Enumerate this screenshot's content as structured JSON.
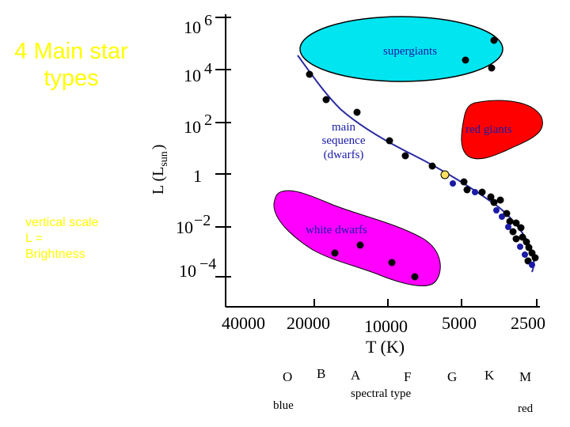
{
  "title": "4 Main star types",
  "vertical_note": {
    "line1": "vertical scale",
    "line2": "L =",
    "line3": "Brightness"
  },
  "axes": {
    "y_label": "L (L",
    "y_label_sub": "sun",
    "y_label_close": ")",
    "y_ticks": [
      {
        "base": "10",
        "exp": "6"
      },
      {
        "base": "10",
        "exp": "4"
      },
      {
        "base": "10",
        "exp": "2"
      },
      {
        "base": "1",
        "exp": ""
      },
      {
        "base": "10",
        "exp": "−2"
      },
      {
        "base": "10",
        "exp": "−4"
      }
    ],
    "x_ticks": [
      "40000",
      "20000",
      "10000",
      "5000",
      "2500"
    ],
    "x_label": "T (K)"
  },
  "regions": {
    "supergiants": "supergiants",
    "main_sequence": [
      "main",
      "sequence",
      "(dwarfs)"
    ],
    "red_giants": "red giants",
    "white_dwarfs": "white dwarfs"
  },
  "spectral": {
    "classes": [
      "O",
      "B",
      "A",
      "F",
      "G",
      "K",
      "M"
    ],
    "label": "spectral type",
    "blue": "blue",
    "red": "red"
  },
  "colors": {
    "supergiants_fill": "#00e5f0",
    "red_giants_fill": "#ff0000",
    "white_dwarfs_fill": "#ff00ff",
    "star_dark": "#000000",
    "star_blue": "#1a1aa6",
    "sun": "#ffe060",
    "main_line": "#2a2aa0",
    "title_yellow": "#ffff00"
  }
}
